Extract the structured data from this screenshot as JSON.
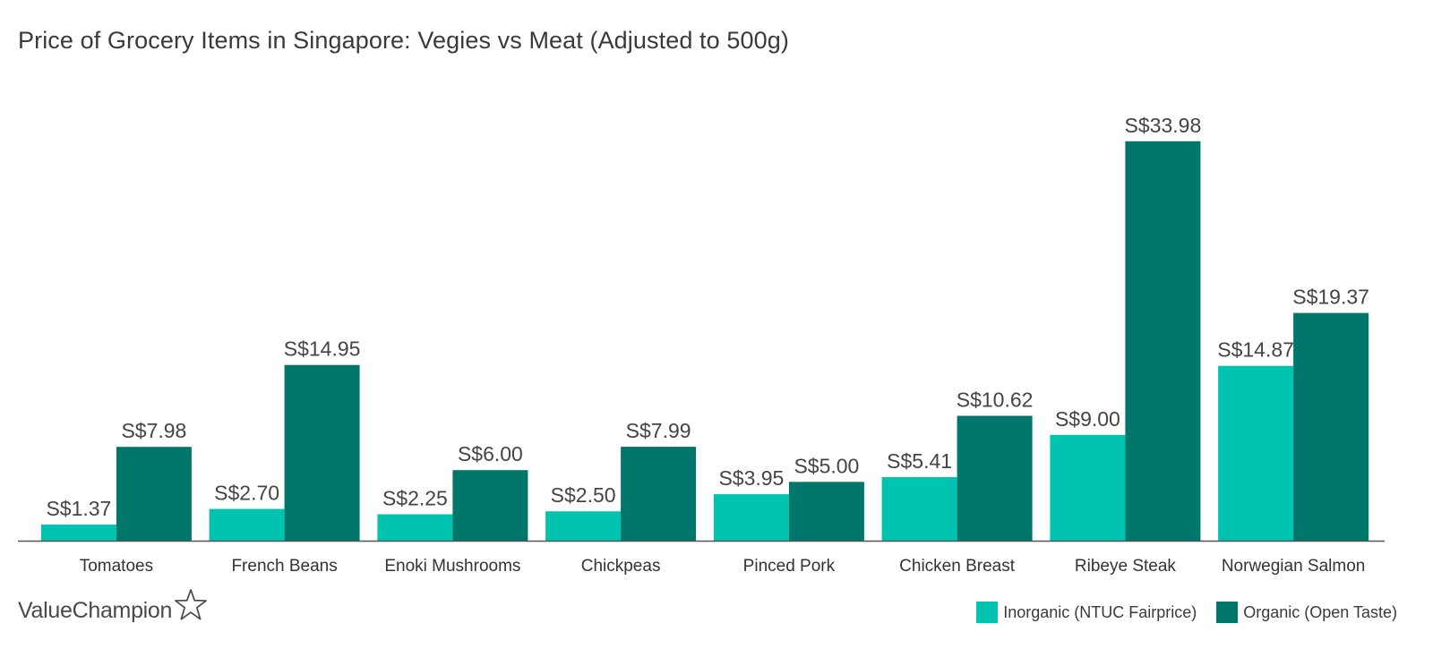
{
  "title": "Price of Grocery Items in Singapore: Vegies vs Meat (Adjusted to 500g)",
  "brand": {
    "name": "ValueChampion",
    "icon": "star-outline-icon"
  },
  "colors": {
    "inorganic": "#00c4b0",
    "organic": "#00776a",
    "axis": "#555555"
  },
  "legend": [
    {
      "label": "Inorganic (NTUC Fairprice)",
      "color": "#00c4b0"
    },
    {
      "label": "Organic (Open Taste)",
      "color": "#00776a"
    }
  ],
  "chart_data": {
    "type": "bar",
    "title": "Price of Grocery Items in Singapore: Vegies vs Meat (Adjusted to 500g)",
    "xlabel": "",
    "ylabel": "",
    "ylim": [
      0,
      38
    ],
    "grid": false,
    "legend_position": "bottom-right",
    "categories": [
      "Tomatoes",
      "French Beans",
      "Enoki Mushrooms",
      "Chickpeas",
      "Pinced Pork",
      "Chicken Breast",
      "Ribeye Steak",
      "Norwegian Salmon"
    ],
    "series": [
      {
        "name": "Inorganic (NTUC Fairprice)",
        "values": [
          1.37,
          2.7,
          2.25,
          2.5,
          3.95,
          5.41,
          9.0,
          14.87
        ],
        "labels": [
          "S$1.37",
          "S$2.70",
          "S$2.25",
          "S$2.50",
          "S$3.95",
          "S$5.41",
          "S$9.00",
          "S$14.87"
        ]
      },
      {
        "name": "Organic (Open Taste)",
        "values": [
          7.98,
          14.95,
          6.0,
          7.99,
          5.0,
          10.62,
          33.98,
          19.37
        ],
        "labels": [
          "S$7.98",
          "S$14.95",
          "S$6.00",
          "S$7.99",
          "S$5.00",
          "S$10.62",
          "S$33.98",
          "S$19.37"
        ]
      }
    ]
  }
}
